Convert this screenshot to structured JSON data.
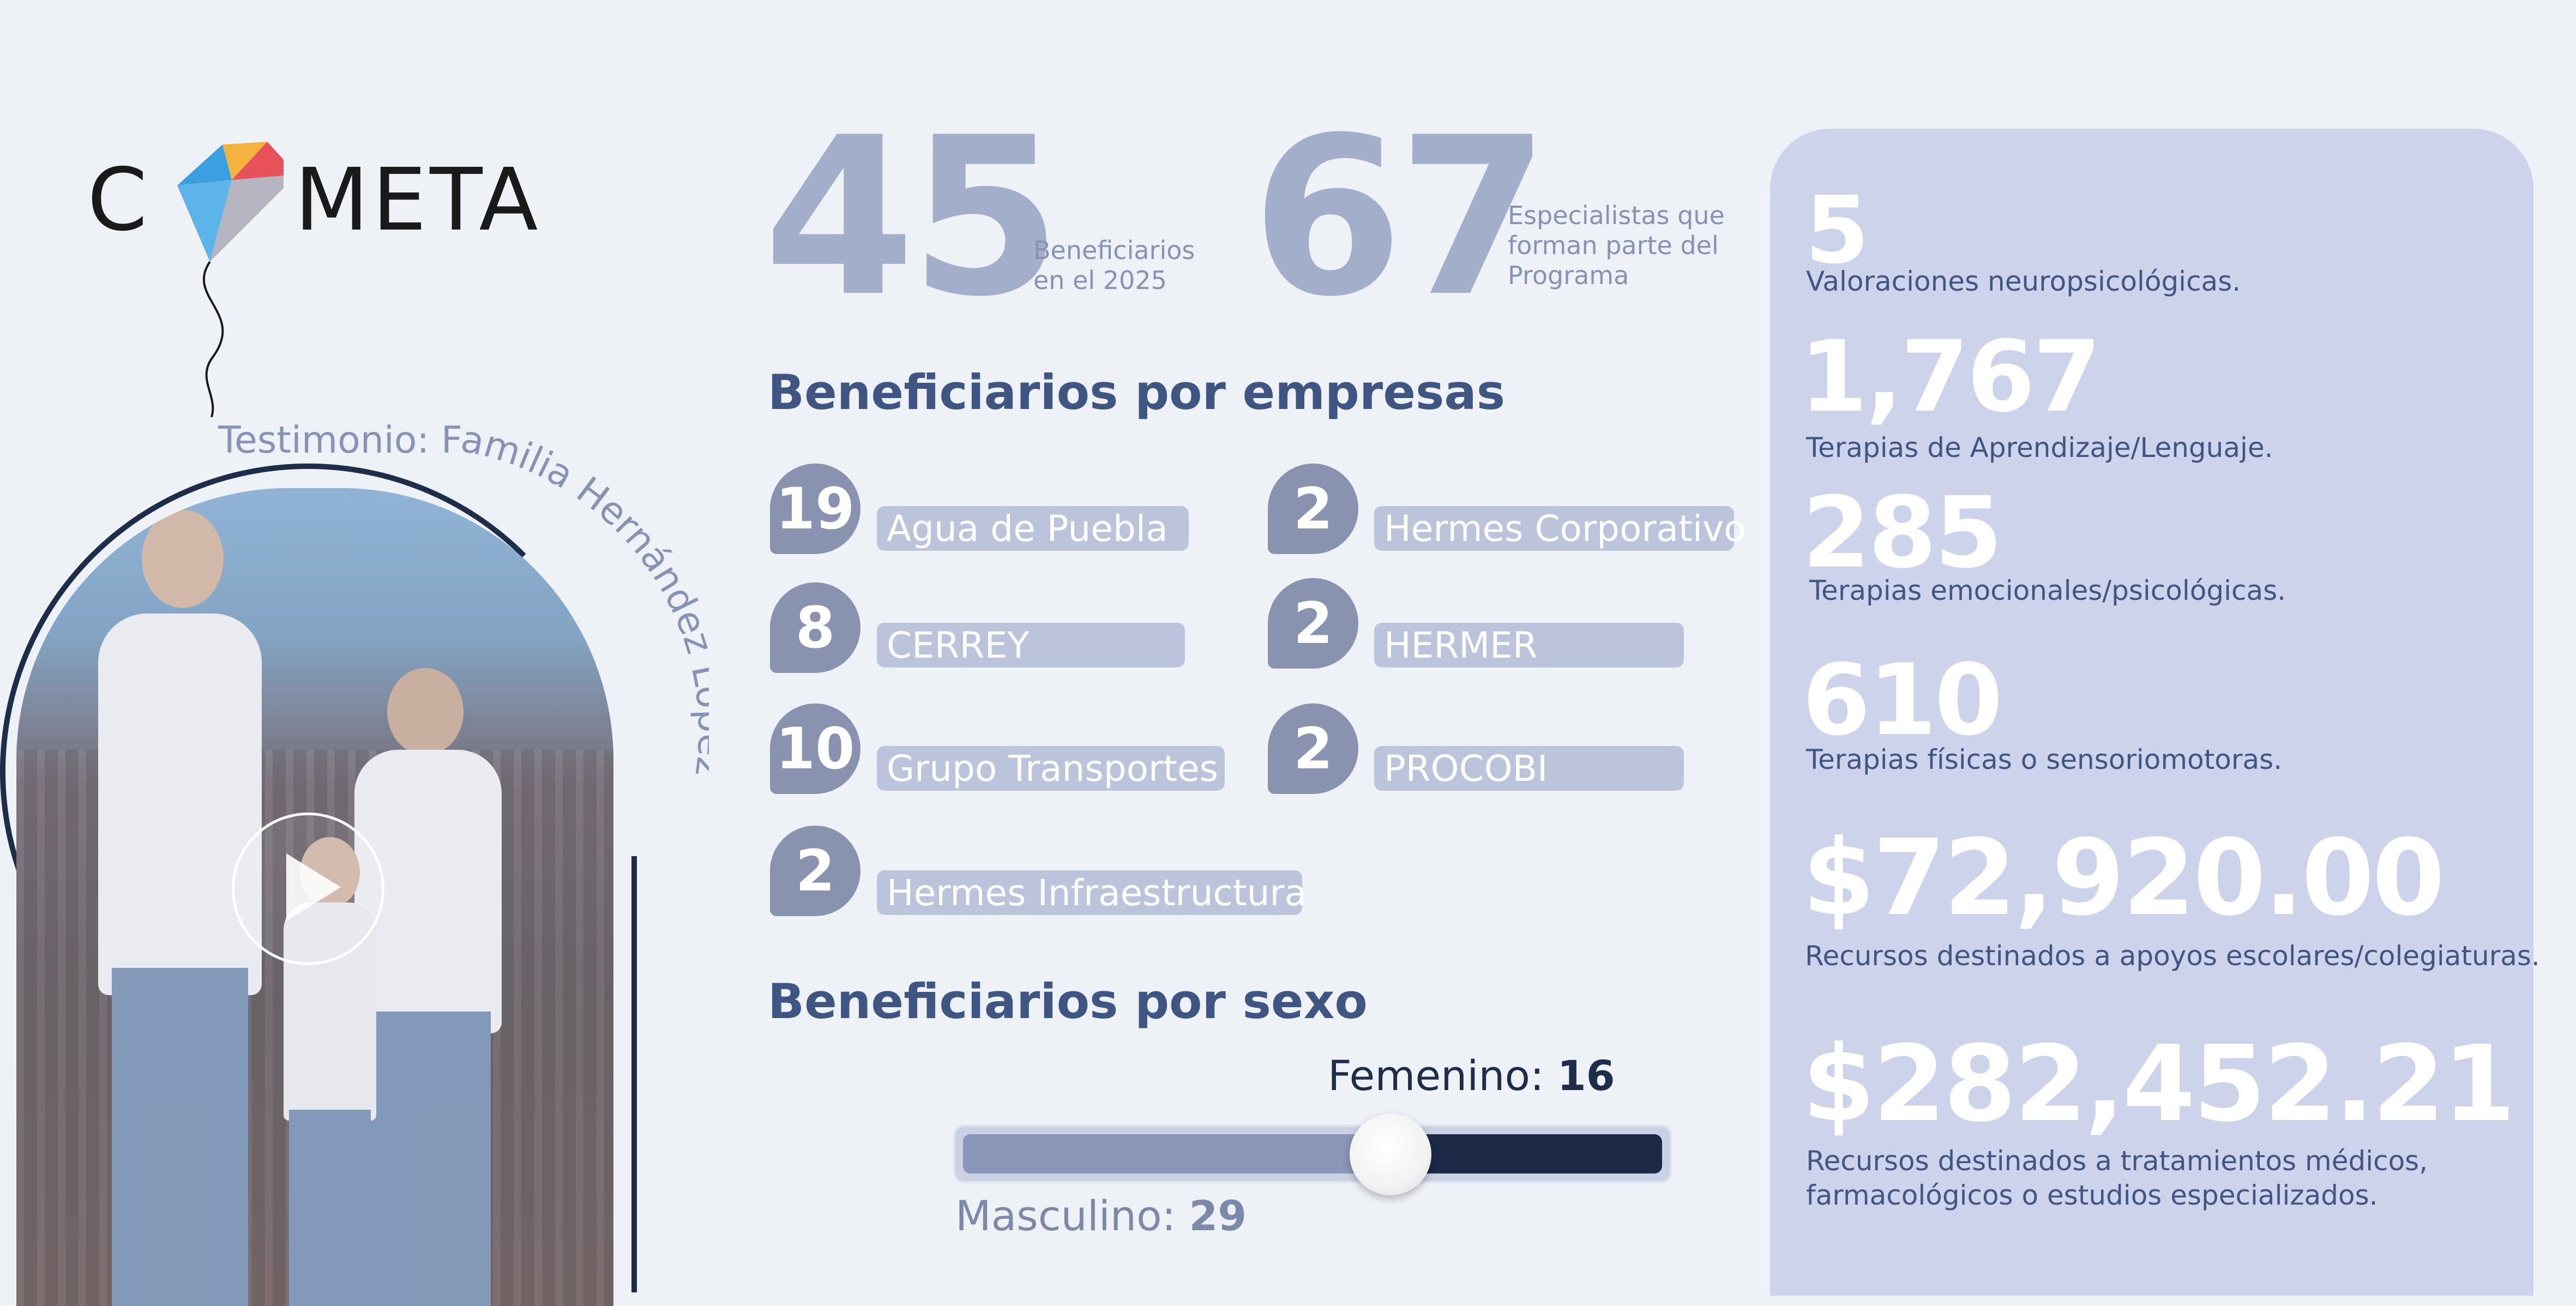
{
  "logo": {
    "c": "C",
    "meta": "META"
  },
  "testimonial": {
    "title": "Testimonio: Familia Hernández López"
  },
  "stats_top": [
    {
      "value": "45",
      "label_line1": "Beneficiarios",
      "label_line2": "en el 2025"
    },
    {
      "value": "67",
      "label_line1": "Especialistas que",
      "label_line2": "forman parte del",
      "label_line3": "Programa"
    }
  ],
  "companies": {
    "title": "Beneficiarios por empresas",
    "items": [
      {
        "count": "19",
        "name": "Agua de Puebla"
      },
      {
        "count": "2",
        "name": "Hermes Corporativo"
      },
      {
        "count": "8",
        "name": "CERREY"
      },
      {
        "count": "2",
        "name": "HERMER"
      },
      {
        "count": "10",
        "name": "Grupo Transportes"
      },
      {
        "count": "2",
        "name": "PROCOBI"
      },
      {
        "count": "2",
        "name": "Hermes Infraestructura"
      }
    ]
  },
  "sex": {
    "title": "Beneficiarios por sexo",
    "female_label": "Femenino:",
    "female_value": "16",
    "male_label": "Masculino:",
    "male_value": "29",
    "male_fraction": 0.644
  },
  "panel": {
    "items": [
      {
        "value": "5",
        "desc": "Valoraciones neuropsicológicas."
      },
      {
        "value": "1,767",
        "desc": "Terapias de Aprendizaje/Lenguaje."
      },
      {
        "value": "285",
        "desc": "Terapias emocionales/psicológicas."
      },
      {
        "value": "610",
        "desc": "Terapias físicas o sensoriomotoras."
      },
      {
        "value": "$72,920.00",
        "desc": "Recursos destinados a apoyos escolares/colegiaturas."
      },
      {
        "value": "$282,452.21",
        "desc_line1": "Recursos destinados  a tratamientos médicos,",
        "desc_line2": "farmacológicos o estudios especializados."
      }
    ]
  },
  "colors": {
    "background": "#eef1f5",
    "panel": "#cdd3ea",
    "accent_dark": "#1e2d4a",
    "title_blue": "#3f5683",
    "badge": "#8993b0"
  }
}
